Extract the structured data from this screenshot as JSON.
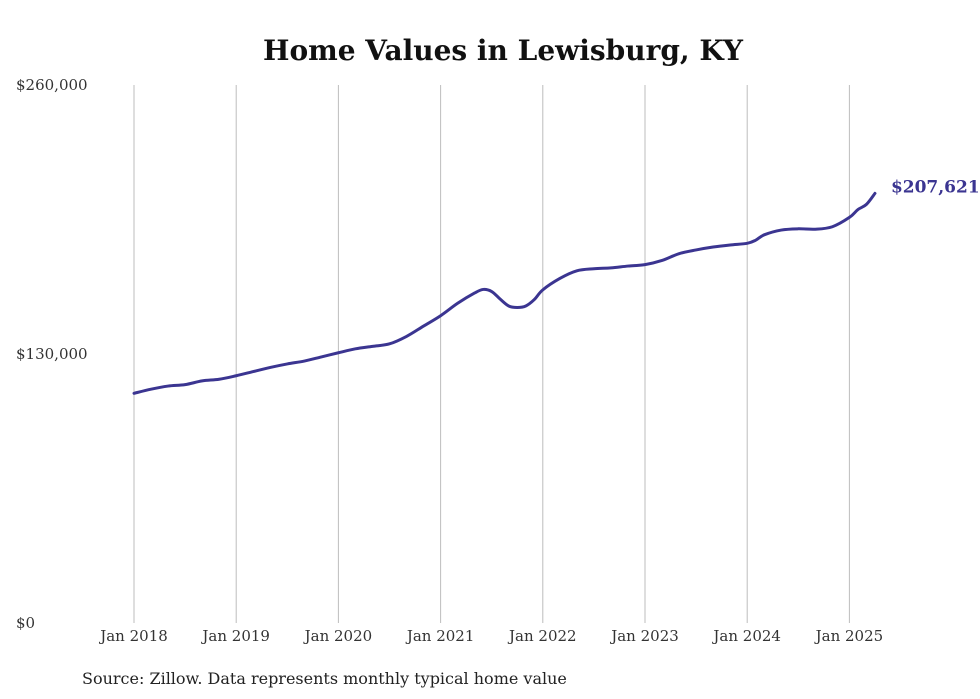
{
  "chart_data": {
    "type": "line",
    "title": "Home Values in Lewisburg, KY",
    "source_note": "Source: Zillow. Data represents monthly typical home value",
    "y_ticks": [
      "$260,000",
      "$130,000",
      "$0"
    ],
    "y_tick_values": [
      260000,
      130000,
      0
    ],
    "ylim": [
      0,
      260000
    ],
    "x_ticks": [
      "Jan 2018",
      "Jan 2019",
      "Jan 2020",
      "Jan 2021",
      "Jan 2022",
      "Jan 2023",
      "Jan 2024",
      "Jan 2025"
    ],
    "x_tick_values": [
      "2018-01",
      "2019-01",
      "2020-01",
      "2021-01",
      "2022-01",
      "2023-01",
      "2024-01",
      "2025-01"
    ],
    "xlim": [
      "2018-01",
      "2025-04"
    ],
    "grid": "vertical",
    "line_color": "#3b3591",
    "end_label": "$207,621",
    "series": [
      {
        "x": [
          "2018-01",
          "2018-03",
          "2018-05",
          "2018-07",
          "2018-09",
          "2018-11",
          "2019-01",
          "2019-03",
          "2019-05",
          "2019-07",
          "2019-09",
          "2019-11",
          "2020-01",
          "2020-03",
          "2020-05",
          "2020-07",
          "2020-09",
          "2020-11",
          "2021-01",
          "2021-03",
          "2021-05",
          "2021-06",
          "2021-07",
          "2021-08",
          "2021-09",
          "2021-10",
          "2021-11",
          "2021-12",
          "2022-01",
          "2022-03",
          "2022-05",
          "2022-07",
          "2022-09",
          "2022-11",
          "2023-01",
          "2023-03",
          "2023-05",
          "2023-07",
          "2023-09",
          "2023-11",
          "2024-01",
          "2024-02",
          "2024-03",
          "2024-05",
          "2024-07",
          "2024-09",
          "2024-11",
          "2025-01",
          "2025-02",
          "2025-03",
          "2025-04"
        ],
        "values": [
          111000,
          113000,
          114500,
          115200,
          117000,
          117800,
          119500,
          121500,
          123500,
          125200,
          126600,
          128600,
          130600,
          132500,
          133700,
          134900,
          138500,
          143500,
          148500,
          154500,
          159500,
          161200,
          160200,
          156500,
          153200,
          152500,
          153200,
          156300,
          161000,
          166500,
          170200,
          171200,
          171600,
          172500,
          173200,
          175200,
          178500,
          180300,
          181700,
          182700,
          183500,
          185000,
          187600,
          189900,
          190500,
          190300,
          191500,
          196000,
          199800,
          202300,
          207621
        ]
      }
    ]
  }
}
